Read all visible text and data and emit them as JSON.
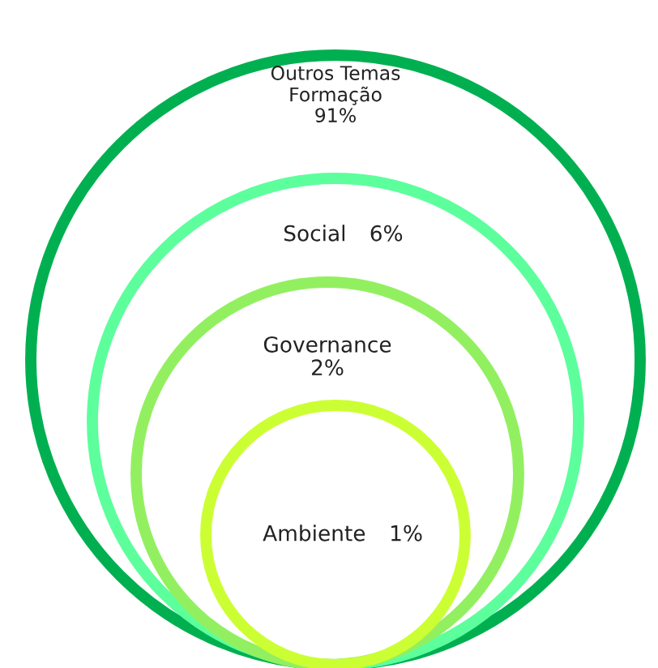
{
  "chart_data": {
    "type": "other",
    "categories": [
      "Outros Temas\nFormação",
      "Social",
      "Governance",
      "Ambiente"
    ],
    "values": [
      91,
      6,
      2,
      1
    ],
    "value_labels": [
      "91%",
      "6%",
      "2%",
      "1%"
    ],
    "colors": [
      "#00b050",
      "#5cff9c",
      "#92f060",
      "#ccff33"
    ]
  }
}
